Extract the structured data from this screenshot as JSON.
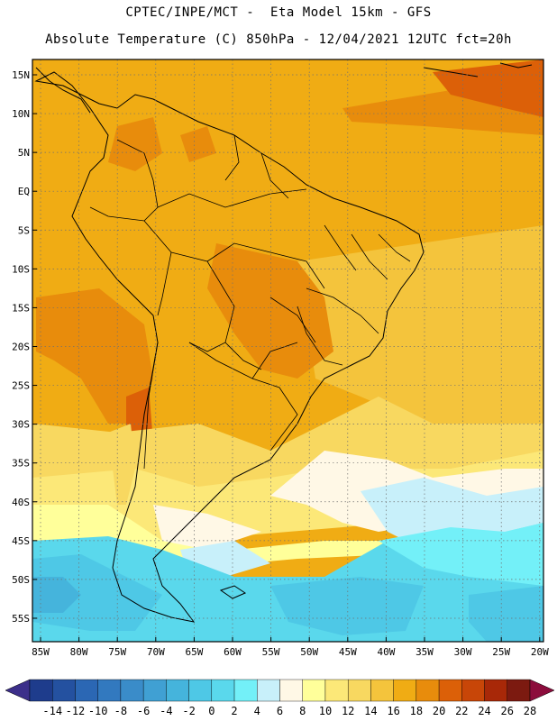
{
  "header": {
    "line1": "CPTEC/INPE/MCT -  Eta Model 15km - GFS",
    "line2": "Absolute Temperature (C) 850hPa - 12/04/2021 12UTC fct=20h"
  },
  "map": {
    "lat_labels": [
      "15N",
      "10N",
      "5N",
      "EQ",
      "5S",
      "10S",
      "15S",
      "20S",
      "25S",
      "30S",
      "35S",
      "40S",
      "45S",
      "50S",
      "55S"
    ],
    "lon_labels": [
      "85W",
      "80W",
      "75W",
      "70W",
      "65W",
      "60W",
      "55W",
      "50W",
      "45W",
      "40W",
      "35W",
      "30W",
      "25W",
      "20W"
    ],
    "frame_color": "#000000",
    "grid": "dotted"
  },
  "legend": {
    "labels": [
      "-14",
      "-12",
      "-10",
      "-8",
      "-6",
      "-4",
      "-2",
      "0",
      "2",
      "4",
      "6",
      "8",
      "10",
      "12",
      "14",
      "16",
      "18",
      "20",
      "22",
      "24",
      "26",
      "28"
    ],
    "colors": [
      "#1e3c8c",
      "#2451a0",
      "#2b67b4",
      "#3279bf",
      "#3a8cc9",
      "#40a0d3",
      "#45b4dc",
      "#4ec8e6",
      "#5ad8ec",
      "#73f0f8",
      "#c8f0fa",
      "#fff8e6",
      "#ffff9a",
      "#fce878",
      "#f8d860",
      "#f4c43c",
      "#f0ac14",
      "#e88c0c",
      "#dc6008",
      "#c84608",
      "#a82808",
      "#7c1a10"
    ],
    "left_arrow_color": "#3c2f8a",
    "right_arrow_color": "#8c0c3c"
  }
}
